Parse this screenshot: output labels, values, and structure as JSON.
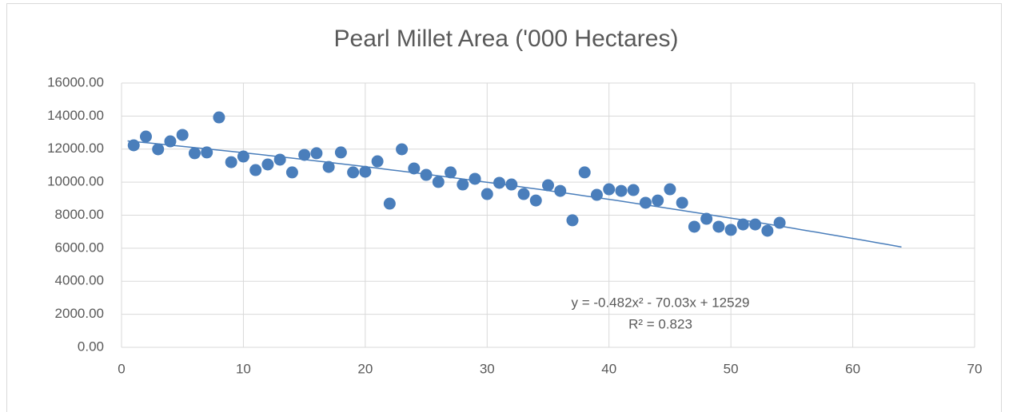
{
  "chart_data": {
    "type": "scatter",
    "title": "Pearl Millet Area ('000 Hectares)",
    "series": [
      {
        "color": "#4a7ebb",
        "x": [
          1,
          2,
          3,
          4,
          5,
          6,
          7,
          8,
          9,
          10,
          11,
          12,
          13,
          14,
          15,
          16,
          17,
          18,
          19,
          20,
          21,
          22,
          23,
          24,
          25,
          26,
          27,
          28,
          29,
          30,
          31,
          32,
          33,
          34,
          35,
          36,
          37,
          38,
          39,
          40,
          41,
          42,
          43,
          44,
          45,
          46,
          47,
          48,
          49,
          50,
          51,
          52,
          53,
          54
        ],
        "values": [
          12230,
          12760,
          11990,
          12470,
          12860,
          11750,
          11800,
          13920,
          11210,
          11550,
          10730,
          11070,
          11360,
          10590,
          11650,
          11750,
          10920,
          11800,
          10590,
          10630,
          11260,
          8700,
          11990,
          10830,
          10440,
          10010,
          10590,
          9860,
          10200,
          9280,
          9960,
          9860,
          9280,
          8890,
          9810,
          9470,
          7690,
          10590,
          9230,
          9570,
          9470,
          9520,
          8750,
          8890,
          9570,
          8750,
          7300,
          7780,
          7300,
          7110,
          7440,
          7440,
          7060,
          7540
        ]
      }
    ],
    "trendline": {
      "label": "y = -0.482x² - 70.03x + 12529",
      "r2_label": "R² = 0.823",
      "coefficients": [
        -0.482,
        -70.03,
        12529
      ],
      "x_range": [
        0.5,
        64
      ],
      "color": "#4a7ebb"
    },
    "xlim": [
      0,
      70
    ],
    "xticks": [
      0,
      10,
      20,
      30,
      40,
      50,
      60,
      70
    ],
    "ylim": [
      0,
      16000
    ],
    "yticks": [
      {
        "value": 0,
        "label": "0.00"
      },
      {
        "value": 2000,
        "label": "2000.00"
      },
      {
        "value": 4000,
        "label": "4000.00"
      },
      {
        "value": 6000,
        "label": "6000.00"
      },
      {
        "value": 8000,
        "label": "8000.00"
      },
      {
        "value": 10000,
        "label": "10000.00"
      },
      {
        "value": 12000,
        "label": "12000.00"
      },
      {
        "value": 14000,
        "label": "14000.00"
      },
      {
        "value": 16000,
        "label": "16000.00"
      }
    ],
    "grid": true
  }
}
